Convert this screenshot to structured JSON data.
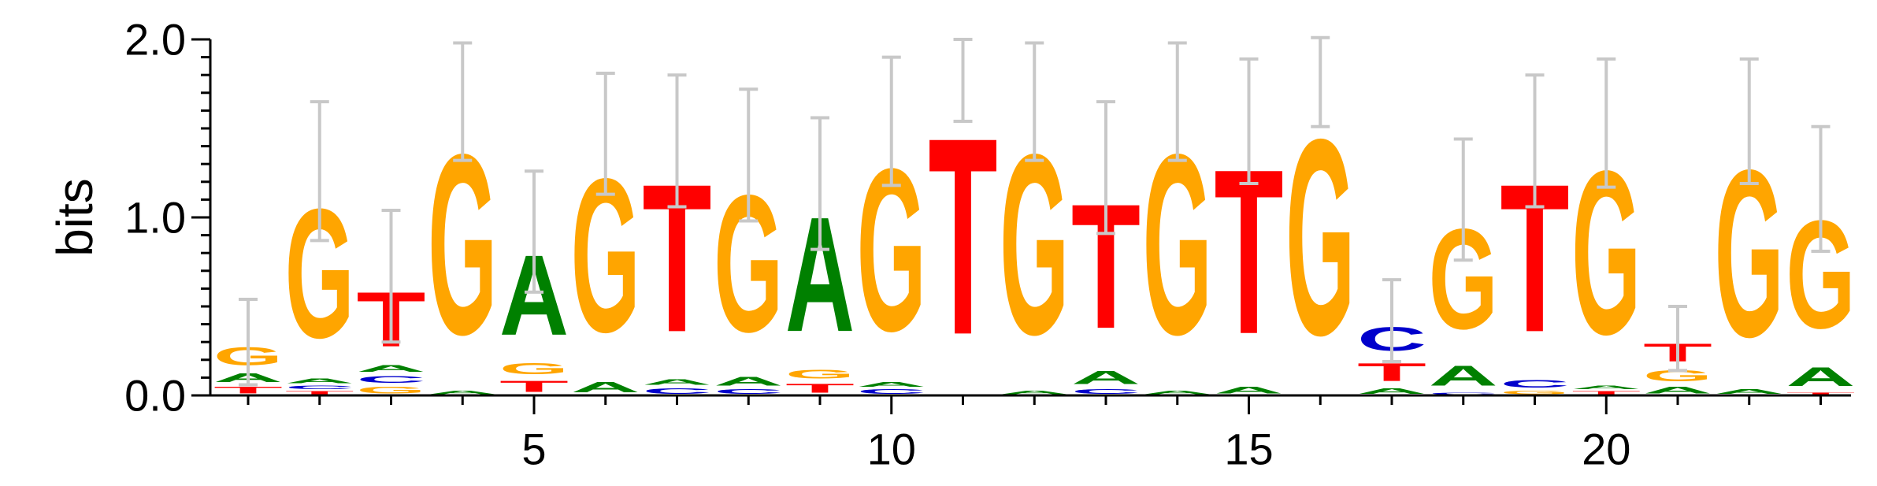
{
  "chart_data": {
    "type": "sequence-logo",
    "ylabel": "bits",
    "ylim": [
      0,
      2
    ],
    "y_ticks": [
      "0.0",
      "1.0",
      "2.0"
    ],
    "x_range": [
      1,
      23
    ],
    "x_ticks": [
      "5",
      "10",
      "15",
      "20"
    ],
    "x_tick_values": [
      5,
      10,
      15,
      20
    ],
    "colors": {
      "A": "#008000",
      "C": "#0000cc",
      "G": "#ffa500",
      "T": "#ff0000"
    },
    "error_bar_color": "#c8c8c8",
    "positions": [
      {
        "pos": 1,
        "stack": [
          [
            "T",
            0.06
          ],
          [
            "A",
            0.08
          ],
          [
            "G",
            0.16
          ]
        ],
        "error": 0.24
      },
      {
        "pos": 2,
        "stack": [
          [
            "T",
            0.03
          ],
          [
            "C",
            0.03
          ],
          [
            "A",
            0.04
          ],
          [
            "G",
            1.16
          ]
        ],
        "error": 0.39
      },
      {
        "pos": 3,
        "stack": [
          [
            "G",
            0.06
          ],
          [
            "C",
            0.06
          ],
          [
            "A",
            0.06
          ],
          [
            "T",
            0.49
          ]
        ],
        "error": 0.37
      },
      {
        "pos": 4,
        "stack": [
          [
            "A",
            0.03
          ],
          [
            "G",
            1.62
          ]
        ],
        "error": 0.33
      },
      {
        "pos": 5,
        "stack": [
          [
            "T",
            0.1
          ],
          [
            "G",
            0.1
          ],
          [
            "A",
            0.72
          ]
        ],
        "error": 0.34
      },
      {
        "pos": 6,
        "stack": [
          [
            "A",
            0.09
          ],
          [
            "G",
            1.38
          ]
        ],
        "error": 0.34
      },
      {
        "pos": 7,
        "stack": [
          [
            "C",
            0.05
          ],
          [
            "A",
            0.05
          ],
          [
            "T",
            1.33
          ]
        ],
        "error": 0.37
      },
      {
        "pos": 8,
        "stack": [
          [
            "C",
            0.04
          ],
          [
            "A",
            0.08
          ],
          [
            "G",
            1.23
          ]
        ],
        "error": 0.37
      },
      {
        "pos": 9,
        "stack": [
          [
            "T",
            0.08
          ],
          [
            "G",
            0.08
          ],
          [
            "A",
            1.03
          ]
        ],
        "error": 0.37
      },
      {
        "pos": 10,
        "stack": [
          [
            "C",
            0.04
          ],
          [
            "A",
            0.04
          ],
          [
            "G",
            1.46
          ]
        ],
        "error": 0.36
      },
      {
        "pos": 11,
        "stack": [
          [
            "T",
            1.77
          ]
        ],
        "error": 0.23
      },
      {
        "pos": 12,
        "stack": [
          [
            "A",
            0.03
          ],
          [
            "G",
            1.62
          ]
        ],
        "error": 0.33
      },
      {
        "pos": 13,
        "stack": [
          [
            "C",
            0.04
          ],
          [
            "A",
            0.12
          ],
          [
            "T",
            1.12
          ]
        ],
        "error": 0.37
      },
      {
        "pos": 14,
        "stack": [
          [
            "A",
            0.03
          ],
          [
            "G",
            1.62
          ]
        ],
        "error": 0.33
      },
      {
        "pos": 15,
        "stack": [
          [
            "A",
            0.06
          ],
          [
            "T",
            1.48
          ]
        ],
        "error": 0.35
      },
      {
        "pos": 16,
        "stack": [
          [
            "G",
            1.76
          ]
        ],
        "error": 0.25
      },
      {
        "pos": 17,
        "stack": [
          [
            "A",
            0.05
          ],
          [
            "T",
            0.16
          ],
          [
            "C",
            0.21
          ]
        ],
        "error": 0.23
      },
      {
        "pos": 18,
        "stack": [
          [
            "C",
            0.02
          ],
          [
            "A",
            0.18
          ],
          [
            "G",
            0.9
          ]
        ],
        "error": 0.34
      },
      {
        "pos": 19,
        "stack": [
          [
            "G",
            0.03
          ],
          [
            "C",
            0.07
          ],
          [
            "T",
            1.33
          ]
        ],
        "error": 0.37
      },
      {
        "pos": 20,
        "stack": [
          [
            "T",
            0.03
          ],
          [
            "A",
            0.03
          ],
          [
            "G",
            1.47
          ]
        ],
        "error": 0.36
      },
      {
        "pos": 21,
        "stack": [
          [
            "A",
            0.06
          ],
          [
            "G",
            0.1
          ],
          [
            "T",
            0.16
          ]
        ],
        "error": 0.18
      },
      {
        "pos": 22,
        "stack": [
          [
            "A",
            0.04
          ],
          [
            "G",
            1.5
          ]
        ],
        "error": 0.35
      },
      {
        "pos": 23,
        "stack": [
          [
            "T",
            0.02
          ],
          [
            "A",
            0.17
          ],
          [
            "G",
            0.97
          ]
        ],
        "error": 0.35
      }
    ]
  }
}
